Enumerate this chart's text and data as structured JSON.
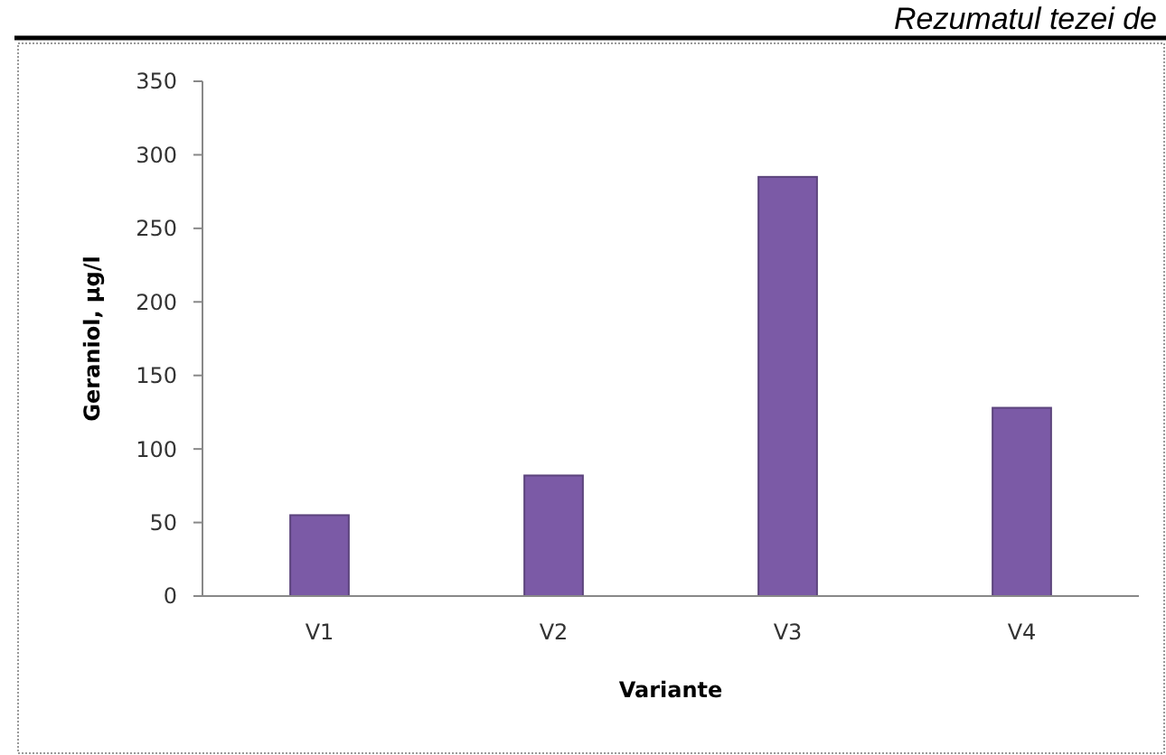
{
  "chart_data": {
    "type": "bar",
    "categories": [
      "V1",
      "V2",
      "V3",
      "V4"
    ],
    "values": [
      55,
      82,
      285,
      128
    ],
    "color": "#7b5aa6",
    "xlabel": "Variante",
    "ylabel": "Geraniol, µg/l",
    "ylim": [
      0,
      350
    ],
    "yticks": [
      0,
      50,
      100,
      150,
      200,
      250,
      300,
      350
    ],
    "grid": false,
    "annotations": [
      "Rezumatul tezei de"
    ]
  }
}
